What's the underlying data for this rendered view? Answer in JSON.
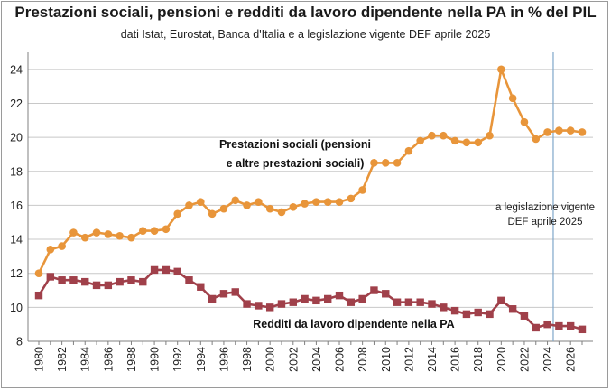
{
  "chart_data": {
    "type": "line",
    "title": "Prestazioni sociali, pensioni e redditi da lavoro dipendente  nella PA in % del PIL",
    "subtitle": "dati Istat, Eurostat, Banca d'Italia e a legislazione vigente DEF aprile 2025",
    "xlabel": "",
    "ylabel": "",
    "ylim": [
      8,
      25
    ],
    "yticks": [
      8,
      10,
      12,
      14,
      16,
      18,
      20,
      22,
      24
    ],
    "xlim": [
      1980,
      2027
    ],
    "xticks": [
      1980,
      1982,
      1984,
      1986,
      1988,
      1990,
      1992,
      1994,
      1996,
      1998,
      2000,
      2002,
      2004,
      2006,
      2008,
      2010,
      2012,
      2014,
      2016,
      2018,
      2020,
      2022,
      2024,
      2026
    ],
    "grid": true,
    "x": [
      1980,
      1981,
      1982,
      1983,
      1984,
      1985,
      1986,
      1987,
      1988,
      1989,
      1990,
      1991,
      1992,
      1993,
      1994,
      1995,
      1996,
      1997,
      1998,
      1999,
      2000,
      2001,
      2002,
      2003,
      2004,
      2005,
      2006,
      2007,
      2008,
      2009,
      2010,
      2011,
      2012,
      2013,
      2014,
      2015,
      2016,
      2017,
      2018,
      2019,
      2020,
      2021,
      2022,
      2023,
      2024,
      2025,
      2026,
      2027
    ],
    "series": [
      {
        "name": "Prestazioni sociali (pensioni e altre prestazioni sociali)",
        "label_lines": [
          "Prestazioni sociali (pensioni",
          "e altre prestazioni sociali)"
        ],
        "color": "#E8953A",
        "marker": "circle",
        "values": [
          12.0,
          13.4,
          13.6,
          14.4,
          14.1,
          14.4,
          14.3,
          14.2,
          14.1,
          14.5,
          14.5,
          14.6,
          15.5,
          16.0,
          16.2,
          15.5,
          15.8,
          16.3,
          16.0,
          16.2,
          15.8,
          15.6,
          15.9,
          16.1,
          16.2,
          16.2,
          16.2,
          16.4,
          16.9,
          18.5,
          18.5,
          18.5,
          19.2,
          19.8,
          20.1,
          20.1,
          19.8,
          19.7,
          19.7,
          20.1,
          24.0,
          22.3,
          20.9,
          19.9,
          20.3,
          20.4,
          20.4,
          20.3
        ]
      },
      {
        "name": "Redditi  da lavoro dipendente nella PA",
        "color": "#A0404A",
        "marker": "square",
        "values": [
          10.7,
          11.8,
          11.6,
          11.6,
          11.5,
          11.3,
          11.3,
          11.5,
          11.6,
          11.5,
          12.2,
          12.2,
          12.1,
          11.6,
          11.2,
          10.5,
          10.8,
          10.9,
          10.2,
          10.1,
          10.0,
          10.2,
          10.3,
          10.5,
          10.4,
          10.5,
          10.7,
          10.3,
          10.5,
          11.0,
          10.8,
          10.3,
          10.3,
          10.3,
          10.2,
          10.0,
          9.8,
          9.6,
          9.7,
          9.6,
          10.4,
          9.9,
          9.5,
          8.8,
          9.0,
          8.9,
          8.9,
          8.7
        ]
      }
    ],
    "annotation": {
      "text_lines": [
        "a legislazione vigente",
        "DEF aprile 2025"
      ],
      "vline_x": 2024.5,
      "vline_color": "#7FA6C9"
    }
  }
}
